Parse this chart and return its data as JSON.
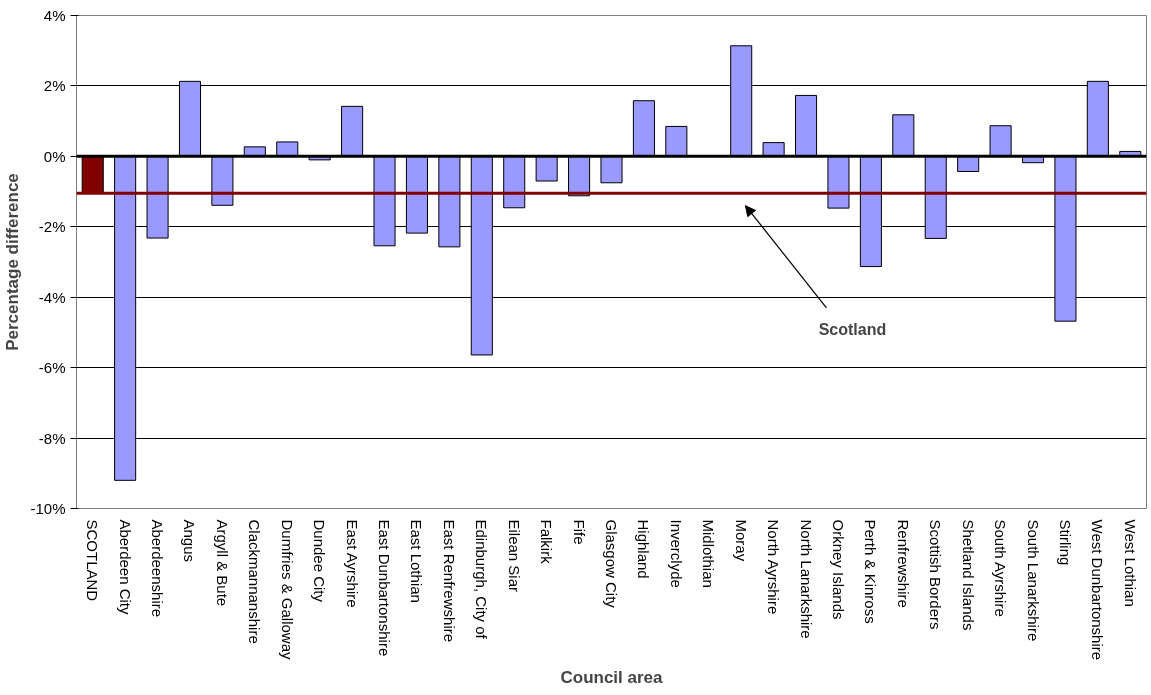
{
  "chart_data": {
    "type": "bar",
    "xlabel": "Council area",
    "ylabel": "Percentage difference",
    "categories": [
      "SCOTLAND",
      "Aberdeen City",
      "Aberdeenshire",
      "Angus",
      "Argyll & Bute",
      "Clackmannanshire",
      "Dumfries & Galloway",
      "Dundee City",
      "East Ayrshire",
      "East Dunbartonshire",
      "East Lothian",
      "East Renfrewshire",
      "Edinburgh, City of",
      "Eilean Siar",
      "Falkirk",
      "Fife",
      "Glasgow City",
      "Highland",
      "Inverclyde",
      "Midlothian",
      "Moray",
      "North Ayrshire",
      "North Lanarkshire",
      "Orkney Islands",
      "Perth & Kinross",
      "Renfrewshire",
      "Scottish Borders",
      "Shetland Islands",
      "South Ayrshire",
      "South Lanarkshire",
      "Stirling",
      "West Dunbartonshire",
      "West Lothian"
    ],
    "values": [
      -1.05,
      -9.2,
      -2.32,
      2.13,
      -1.39,
      0.27,
      0.41,
      -0.1,
      1.42,
      -2.54,
      -2.18,
      -2.57,
      -5.64,
      -1.46,
      -0.7,
      -1.12,
      -0.75,
      1.58,
      0.85,
      null,
      3.14,
      0.39,
      1.73,
      -1.47,
      -3.13,
      1.18,
      -2.33,
      -0.43,
      0.87,
      -0.18,
      -4.68,
      2.13,
      0.14
    ],
    "colors": [
      "#800000",
      "#9999ff",
      "#9999ff",
      "#9999ff",
      "#9999ff",
      "#9999ff",
      "#9999ff",
      "#9999ff",
      "#9999ff",
      "#9999ff",
      "#9999ff",
      "#9999ff",
      "#9999ff",
      "#9999ff",
      "#9999ff",
      "#9999ff",
      "#9999ff",
      "#9999ff",
      "#9999ff",
      "#9999ff",
      "#9999ff",
      "#9999ff",
      "#9999ff",
      "#9999ff",
      "#9999ff",
      "#9999ff",
      "#9999ff",
      "#9999ff",
      "#9999ff",
      "#9999ff",
      "#9999ff",
      "#9999ff",
      "#9999ff"
    ],
    "ylim": [
      -10,
      4
    ],
    "yticks": [
      {
        "value": -10,
        "label": "-10%"
      },
      {
        "value": -8,
        "label": "-8%"
      },
      {
        "value": -6,
        "label": "-6%"
      },
      {
        "value": -4,
        "label": "-4%"
      },
      {
        "value": -2,
        "label": "-2%"
      },
      {
        "value": 0,
        "label": "0%"
      },
      {
        "value": 2,
        "label": "2%"
      },
      {
        "value": 4,
        "label": "4%"
      }
    ],
    "grid": "y",
    "annotations": [
      "Scotland"
    ],
    "ref_lines": [
      {
        "axis": "y",
        "value": -1.05,
        "color": "#800000",
        "line_style": "solid"
      }
    ]
  }
}
